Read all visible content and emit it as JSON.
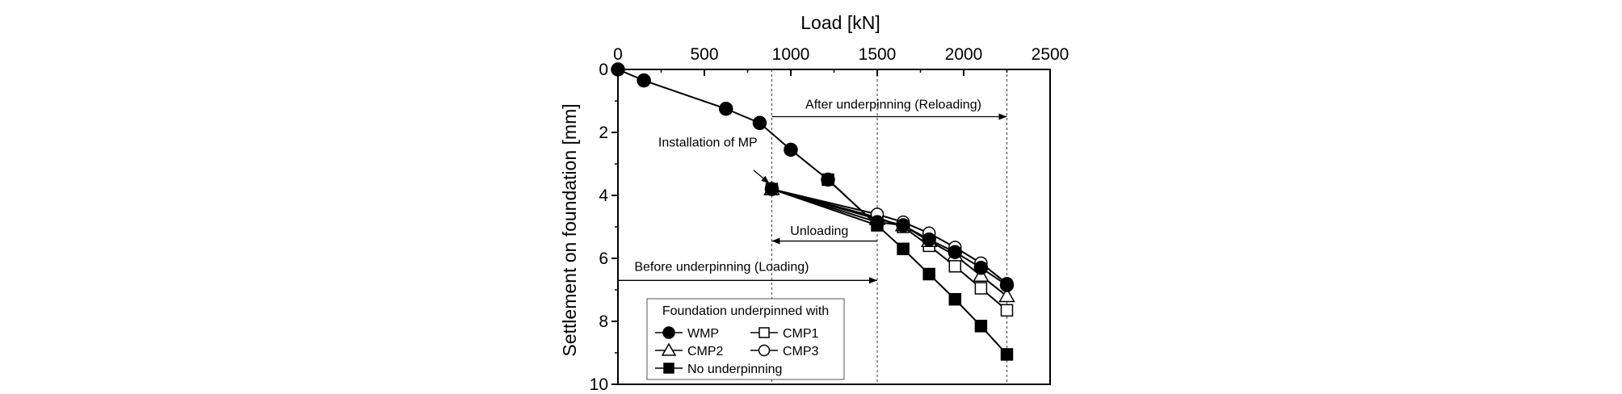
{
  "chart_data": {
    "type": "line",
    "xlabel": "Load [kN]",
    "ylabel": "Settlement on foundation [mm]",
    "xlim": [
      0,
      2500
    ],
    "ylim": [
      0,
      10
    ],
    "y_inverted": true,
    "x_axis_position": "top",
    "xticks": [
      "0",
      "500",
      "1000",
      "1500",
      "2000",
      "2500"
    ],
    "yticks": [
      "0",
      "2",
      "4",
      "6",
      "8",
      "10"
    ],
    "grid": false,
    "legend_position": "bottom-left",
    "legend_title": "Foundation underpinned with",
    "series": [
      {
        "name": "WMP",
        "marker": "circle-filled",
        "x": [
          0,
          150,
          625,
          820,
          1000,
          1215,
          890,
          1500,
          1650,
          1800,
          1950,
          2100,
          2250
        ],
        "y": [
          0,
          0.35,
          1.25,
          1.7,
          2.55,
          3.5,
          3.8,
          4.85,
          4.95,
          5.4,
          5.8,
          6.3,
          6.85
        ]
      },
      {
        "name": "CMP1",
        "marker": "square-open",
        "x": [
          890,
          1500,
          1650,
          1800,
          1950,
          2100,
          2250
        ],
        "y": [
          3.8,
          4.7,
          5.0,
          5.6,
          6.25,
          6.95,
          7.65
        ]
      },
      {
        "name": "CMP2",
        "marker": "triangle-open",
        "x": [
          890,
          1500,
          1650,
          1800,
          1950,
          2100,
          2250
        ],
        "y": [
          3.8,
          4.75,
          4.95,
          5.45,
          5.9,
          6.55,
          7.2
        ]
      },
      {
        "name": "CMP3",
        "marker": "circle-open",
        "x": [
          890,
          1500,
          1650,
          1800,
          1950,
          2100,
          2250
        ],
        "y": [
          3.8,
          4.6,
          4.85,
          5.2,
          5.65,
          6.15,
          6.8
        ]
      },
      {
        "name": "No underpinning",
        "marker": "square-filled",
        "x": [
          1215,
          1500,
          1650,
          1800,
          1950,
          2100,
          2250
        ],
        "y": [
          3.5,
          4.95,
          5.7,
          6.5,
          7.3,
          8.15,
          9.05
        ]
      }
    ],
    "reference_lines": [
      {
        "x": 890
      },
      {
        "x": 1500
      },
      {
        "x": 2250
      }
    ],
    "annotations": [
      {
        "text": "After underpinning (Reloading)",
        "arrow_from_x": 890,
        "arrow_to_x": 2250,
        "y": 1.5
      },
      {
        "text": "Installation of MP",
        "arrow_to_x": 890,
        "arrow_to_y": 3.8
      },
      {
        "text": "Unloading",
        "arrow_from_x": 1500,
        "arrow_to_x": 890,
        "y": 5.45
      },
      {
        "text": "Before underpinning (Loading)",
        "arrow_from_x": 0,
        "arrow_to_x": 1500,
        "y": 6.7
      }
    ]
  }
}
